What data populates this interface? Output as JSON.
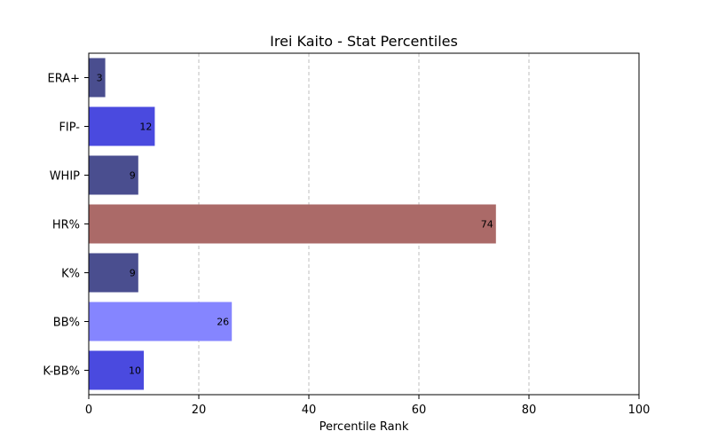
{
  "chart_data": {
    "type": "bar",
    "orientation": "horizontal",
    "title": "Irei Kaito - Stat Percentiles",
    "xlabel": "Percentile Rank",
    "ylabel": "",
    "xlim": [
      0,
      100
    ],
    "xticks": [
      0,
      20,
      40,
      60,
      80,
      100
    ],
    "grid": "x-dashed",
    "categories": [
      "ERA+",
      "FIP-",
      "WHIP",
      "HR%",
      "K%",
      "BB%",
      "K-BB%"
    ],
    "values": [
      3,
      12,
      9,
      74,
      9,
      26,
      10
    ],
    "colors": [
      "#4a4e8f",
      "#4a4adf",
      "#4a4e8f",
      "#ab6a68",
      "#4a4e8f",
      "#8585ff",
      "#4a4adf"
    ]
  }
}
